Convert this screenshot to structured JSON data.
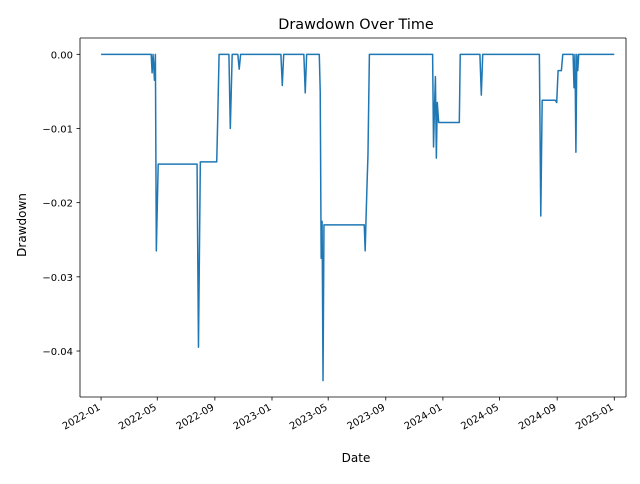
{
  "chart_data": {
    "type": "line",
    "title": "Drawdown Over Time",
    "xlabel": "Date",
    "ylabel": "Drawdown",
    "grid": false,
    "legend": "none",
    "line_color": "#1f77b4",
    "xlim": [
      "2021-11-17",
      "2025-01-26"
    ],
    "ylim": [
      -0.0462,
      0.0022
    ],
    "x_ticks": [
      "2022-01",
      "2022-05",
      "2022-09",
      "2023-01",
      "2023-05",
      "2023-09",
      "2024-01",
      "2024-05",
      "2024-09",
      "2025-01"
    ],
    "y_ticks": [
      "0.00",
      "-0.01",
      "-0.02",
      "-0.03",
      "-0.04"
    ],
    "y_tick_values": [
      0,
      -0.01,
      -0.02,
      -0.03,
      -0.04
    ],
    "series": [
      {
        "points": [
          [
            "2022-01-01",
            0.0
          ],
          [
            "2022-04-18",
            0.0
          ],
          [
            "2022-04-20",
            -0.0025
          ],
          [
            "2022-04-22",
            0.0
          ],
          [
            "2022-04-25",
            -0.0035
          ],
          [
            "2022-04-27",
            0.0
          ],
          [
            "2022-04-29",
            -0.0265
          ],
          [
            "2022-05-03",
            -0.0148
          ],
          [
            "2022-07-25",
            -0.0148
          ],
          [
            "2022-07-28",
            -0.0395
          ],
          [
            "2022-08-01",
            -0.0145
          ],
          [
            "2022-09-05",
            -0.0145
          ],
          [
            "2022-09-07",
            -0.009
          ],
          [
            "2022-09-10",
            0.0
          ],
          [
            "2022-10-01",
            0.0
          ],
          [
            "2022-10-04",
            -0.01
          ],
          [
            "2022-10-08",
            0.0
          ],
          [
            "2022-10-20",
            0.0
          ],
          [
            "2022-10-23",
            -0.002
          ],
          [
            "2022-10-26",
            0.0
          ],
          [
            "2023-01-20",
            0.0
          ],
          [
            "2023-01-23",
            -0.0042
          ],
          [
            "2023-01-26",
            0.0
          ],
          [
            "2023-03-10",
            0.0
          ],
          [
            "2023-03-13",
            -0.0052
          ],
          [
            "2023-03-16",
            0.0
          ],
          [
            "2023-04-12",
            0.0
          ],
          [
            "2023-04-14",
            -0.005
          ],
          [
            "2023-04-16",
            -0.0275
          ],
          [
            "2023-04-18",
            -0.0225
          ],
          [
            "2023-04-20",
            -0.044
          ],
          [
            "2023-04-22",
            -0.023
          ],
          [
            "2023-04-25",
            -0.023
          ],
          [
            "2023-07-17",
            -0.023
          ],
          [
            "2023-07-19",
            -0.0265
          ],
          [
            "2023-07-21",
            -0.0218
          ],
          [
            "2023-07-23",
            -0.0175
          ],
          [
            "2023-07-25",
            -0.0135
          ],
          [
            "2023-07-28",
            0.0
          ],
          [
            "2023-12-10",
            0.0
          ],
          [
            "2023-12-12",
            -0.0125
          ],
          [
            "2023-12-14",
            -0.0072
          ],
          [
            "2023-12-16",
            -0.003
          ],
          [
            "2023-12-18",
            -0.014
          ],
          [
            "2023-12-20",
            -0.0065
          ],
          [
            "2023-12-23",
            -0.0092
          ],
          [
            "2024-02-05",
            -0.0092
          ],
          [
            "2024-02-07",
            0.0
          ],
          [
            "2024-03-20",
            0.0
          ],
          [
            "2024-03-23",
            -0.0055
          ],
          [
            "2024-03-26",
            0.0
          ],
          [
            "2024-07-25",
            0.0
          ],
          [
            "2024-07-28",
            -0.0218
          ],
          [
            "2024-07-31",
            -0.0062
          ],
          [
            "2024-08-28",
            -0.0062
          ],
          [
            "2024-08-31",
            -0.0065
          ],
          [
            "2024-09-03",
            -0.0022
          ],
          [
            "2024-09-10",
            -0.0022
          ],
          [
            "2024-09-13",
            0.0
          ],
          [
            "2024-10-05",
            0.0
          ],
          [
            "2024-10-07",
            -0.0045
          ],
          [
            "2024-10-09",
            0.0
          ],
          [
            "2024-10-11",
            -0.0132
          ],
          [
            "2024-10-13",
            0.0
          ],
          [
            "2024-10-15",
            -0.0022
          ],
          [
            "2024-10-17",
            0.0
          ],
          [
            "2025-01-01",
            0.0
          ]
        ]
      }
    ]
  }
}
